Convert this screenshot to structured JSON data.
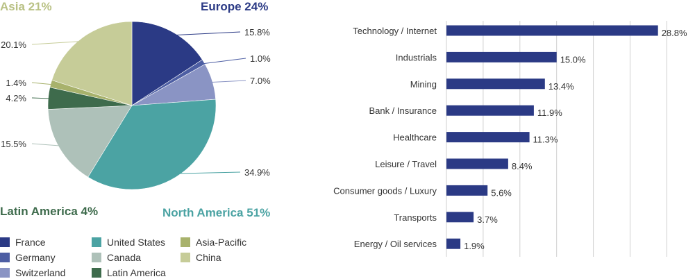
{
  "chart_data": [
    {
      "type": "pie",
      "regions": [
        {
          "label": "Europe 24%",
          "color": "#2b3a85"
        },
        {
          "label": "Asia 21%",
          "color": "#b9c184"
        },
        {
          "label": "Latin America 4%",
          "color": "#3e6b4c"
        },
        {
          "label": "North America 51%",
          "color": "#4ba3a3"
        }
      ],
      "slices": [
        {
          "name": "France",
          "value": 15.8,
          "label": "15.8%",
          "color": "#2b3a85"
        },
        {
          "name": "Germany",
          "value": 1.0,
          "label": "1.0%",
          "color": "#4d5ea3"
        },
        {
          "name": "Switzerland",
          "value": 7.0,
          "label": "7.0%",
          "color": "#8a94c4"
        },
        {
          "name": "United States",
          "value": 34.9,
          "label": "34.9%",
          "color": "#4ba3a3"
        },
        {
          "name": "Canada",
          "value": 15.5,
          "label": "15.5%",
          "color": "#aec1b9"
        },
        {
          "name": "Latin America",
          "value": 4.2,
          "label": "4.2%",
          "color": "#3e6b4c"
        },
        {
          "name": "Asia-Pacific",
          "value": 1.4,
          "label": "1.4%",
          "color": "#a8b26c"
        },
        {
          "name": "China",
          "value": 20.1,
          "label": "20.1%",
          "color": "#c6cc98"
        }
      ],
      "legend": [
        "France",
        "Germany",
        "Switzerland",
        "United States",
        "Canada",
        "Latin America",
        "Asia-Pacific",
        "China"
      ]
    },
    {
      "type": "bar",
      "orientation": "horizontal",
      "categories": [
        "Technology / Internet",
        "Industrials",
        "Mining",
        "Bank / Insurance",
        "Healthcare",
        "Leisure / Travel",
        "Consumer goods / Luxury",
        "Transports",
        "Energy / Oil services"
      ],
      "values": [
        28.8,
        15.0,
        13.4,
        11.9,
        11.3,
        8.4,
        5.6,
        3.7,
        1.9
      ],
      "value_labels": [
        "28.8%",
        "15.0%",
        "13.4%",
        "11.9%",
        "11.3%",
        "8.4%",
        "5.6%",
        "3.7%",
        "1.9%"
      ],
      "xlim": [
        0,
        33
      ],
      "grid": true,
      "bar_color": "#2b3a85"
    }
  ]
}
